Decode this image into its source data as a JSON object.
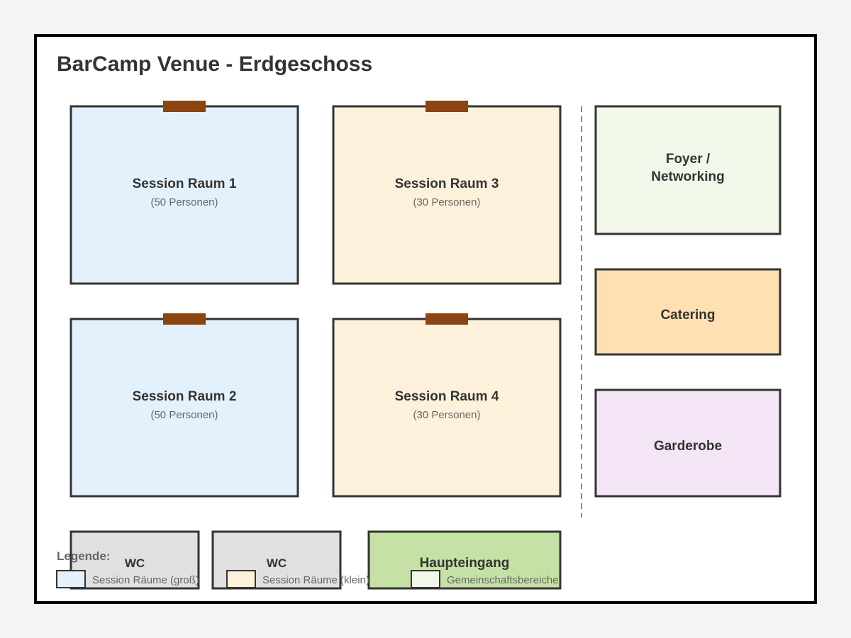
{
  "title": "BarCamp Venue - Erdgeschoss",
  "colors": {
    "page_bg": "#f4f4f4",
    "plan_bg": "#ffffff",
    "wall": "#000000",
    "room_border": "#333333",
    "door": "#8b4513",
    "session_large": "#e3f1fc",
    "session_small": "#fef1dc",
    "foyer": "#f1f7e9",
    "catering": "#ffe0b2",
    "garderobe": "#f3e5f5",
    "wc": "#e0e0e0",
    "entrance": "#c5e1a5",
    "divider": "#888888",
    "text_dark": "#333333",
    "text_muted": "#666666"
  },
  "rooms": {
    "session1": {
      "name": "Session Raum 1",
      "capacity": "(50 Personen)"
    },
    "session2": {
      "name": "Session Raum 2",
      "capacity": "(50 Personen)"
    },
    "session3": {
      "name": "Session Raum 3",
      "capacity": "(30 Personen)"
    },
    "session4": {
      "name": "Session Raum 4",
      "capacity": "(30 Personen)"
    },
    "foyer": {
      "name_line1": "Foyer /",
      "name_line2": "Networking"
    },
    "catering": {
      "name": "Catering"
    },
    "garderobe": {
      "name": "Garderobe"
    },
    "wc1": {
      "name": "WC"
    },
    "wc2": {
      "name": "WC"
    },
    "entrance": {
      "name": "Haupteingang"
    }
  },
  "legend": {
    "title": "Legende:",
    "items": [
      {
        "label": "Session Räume (groß)",
        "color": "#e3f1fc"
      },
      {
        "label": "Session Räume (klein)",
        "color": "#fef1dc"
      },
      {
        "label": "Gemeinschaftsbereiche",
        "color": "#f1f7e9"
      }
    ]
  }
}
